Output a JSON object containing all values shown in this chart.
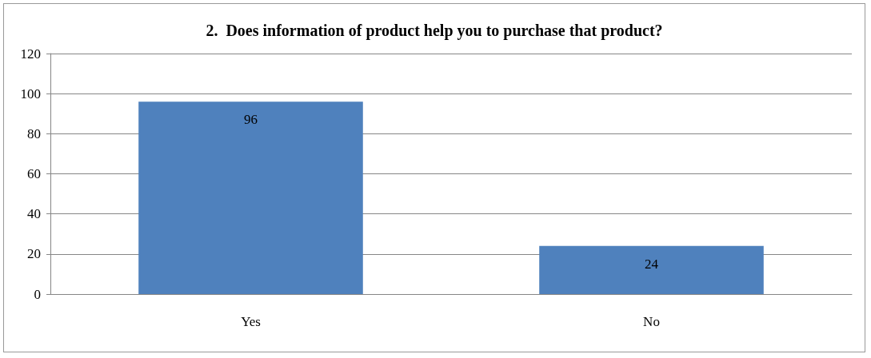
{
  "chart_data": {
    "type": "bar",
    "title": "2.  Does information of product help you to purchase that product?",
    "categories": [
      "Yes",
      "No"
    ],
    "values": [
      96,
      24
    ],
    "color": "#4f81bd",
    "ylim": [
      0,
      120
    ],
    "yticks": [
      0,
      20,
      40,
      60,
      80,
      100,
      120
    ],
    "grid": "y",
    "data_labels": true
  }
}
